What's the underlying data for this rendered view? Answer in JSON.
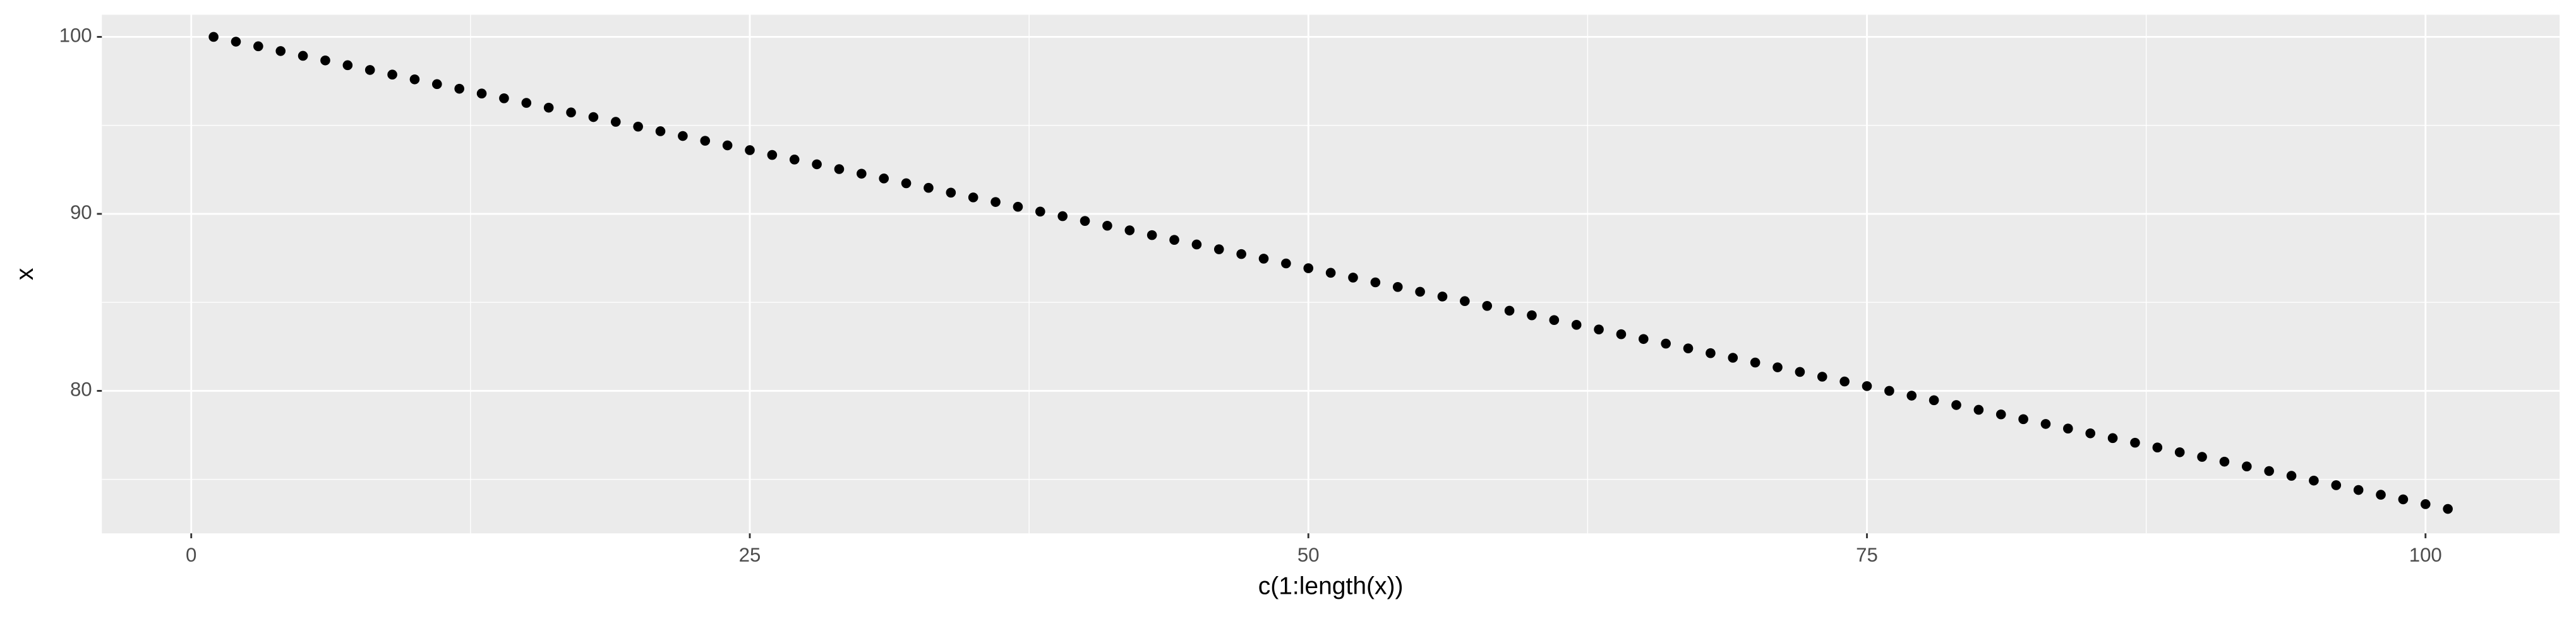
{
  "chart_data": {
    "type": "scatter",
    "x_label": "c(1:length(x))",
    "y_label": "x",
    "x": [
      1,
      2,
      3,
      4,
      5,
      6,
      7,
      8,
      9,
      10,
      11,
      12,
      13,
      14,
      15,
      16,
      17,
      18,
      19,
      20,
      21,
      22,
      23,
      24,
      25,
      26,
      27,
      28,
      29,
      30,
      31,
      32,
      33,
      34,
      35,
      36,
      37,
      38,
      39,
      40,
      41,
      42,
      43,
      44,
      45,
      46,
      47,
      48,
      49,
      50,
      51,
      52,
      53,
      54,
      55,
      56,
      57,
      58,
      59,
      60,
      61,
      62,
      63,
      64,
      65,
      66,
      67,
      68,
      69,
      70,
      71,
      72,
      73,
      74,
      75,
      76,
      77,
      78,
      79,
      80,
      81,
      82,
      83,
      84,
      85,
      86,
      87,
      88,
      89,
      90,
      91,
      92,
      93,
      94,
      95,
      96,
      97,
      98,
      99,
      100,
      101
    ],
    "values": [
      100,
      99.73,
      99.47,
      99.2,
      98.93,
      98.67,
      98.4,
      98.13,
      97.87,
      97.6,
      97.33,
      97.07,
      96.8,
      96.53,
      96.27,
      96,
      95.73,
      95.47,
      95.2,
      94.93,
      94.67,
      94.4,
      94.13,
      93.87,
      93.6,
      93.33,
      93.07,
      92.8,
      92.53,
      92.27,
      92,
      91.73,
      91.47,
      91.2,
      90.93,
      90.67,
      90.4,
      90.13,
      89.87,
      89.6,
      89.33,
      89.07,
      88.8,
      88.53,
      88.27,
      88,
      87.73,
      87.47,
      87.2,
      86.93,
      86.67,
      86.4,
      86.13,
      85.87,
      85.6,
      85.33,
      85.07,
      84.8,
      84.53,
      84.27,
      84,
      83.73,
      83.47,
      83.2,
      82.93,
      82.67,
      82.4,
      82.13,
      81.87,
      81.6,
      81.33,
      81.07,
      80.8,
      80.53,
      80.27,
      80,
      79.73,
      79.47,
      79.2,
      78.93,
      78.67,
      78.4,
      78.13,
      77.87,
      77.6,
      77.33,
      77.07,
      76.8,
      76.53,
      76.27,
      76,
      75.73,
      75.47,
      75.2,
      74.93,
      74.67,
      74.4,
      74.13,
      73.87,
      73.6,
      73.33
    ],
    "color": "#000000",
    "xlim": [
      -4,
      106
    ],
    "ylim": [
      71.95,
      101.25
    ],
    "xticks": [
      0,
      25,
      50,
      75,
      100
    ],
    "yticks": [
      80,
      90,
      100
    ],
    "grid": true,
    "minor_grid": true
  }
}
